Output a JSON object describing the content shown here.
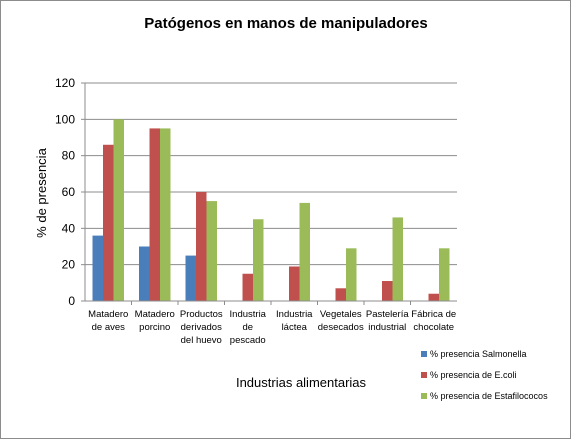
{
  "chart_data": {
    "type": "bar",
    "title": "Patógenos en manos de manipuladores",
    "xlabel": "Industrias alimentarias",
    "ylabel": "% de presencia",
    "ylim": [
      0,
      120
    ],
    "yticks": [
      0,
      20,
      40,
      60,
      80,
      100,
      120
    ],
    "grid": true,
    "legend_position": "bottom-right",
    "categories": [
      [
        "Matadero",
        "de aves"
      ],
      [
        "Matadero",
        "porcino"
      ],
      [
        "Productos",
        "derivados",
        "del huevo"
      ],
      [
        "Industria",
        "de",
        "pescado"
      ],
      [
        "Industria",
        "láctea"
      ],
      [
        "Vegetales",
        "desecados"
      ],
      [
        "Pastelería",
        "industrial"
      ],
      [
        "Fábrica de",
        "chocolate"
      ]
    ],
    "series": [
      {
        "name": "% presencia Salmonella",
        "color": "#4a7ebb",
        "values": [
          36,
          30,
          25,
          0,
          0,
          0,
          0,
          0
        ]
      },
      {
        "name": "% presencia de E.coli",
        "color": "#c0504d",
        "values": [
          86,
          95,
          60,
          15,
          19,
          7,
          11,
          4
        ]
      },
      {
        "name": "% presencia de Estafilococos",
        "color": "#9bbb59",
        "values": [
          100,
          95,
          55,
          45,
          54,
          29,
          46,
          29
        ]
      }
    ]
  }
}
